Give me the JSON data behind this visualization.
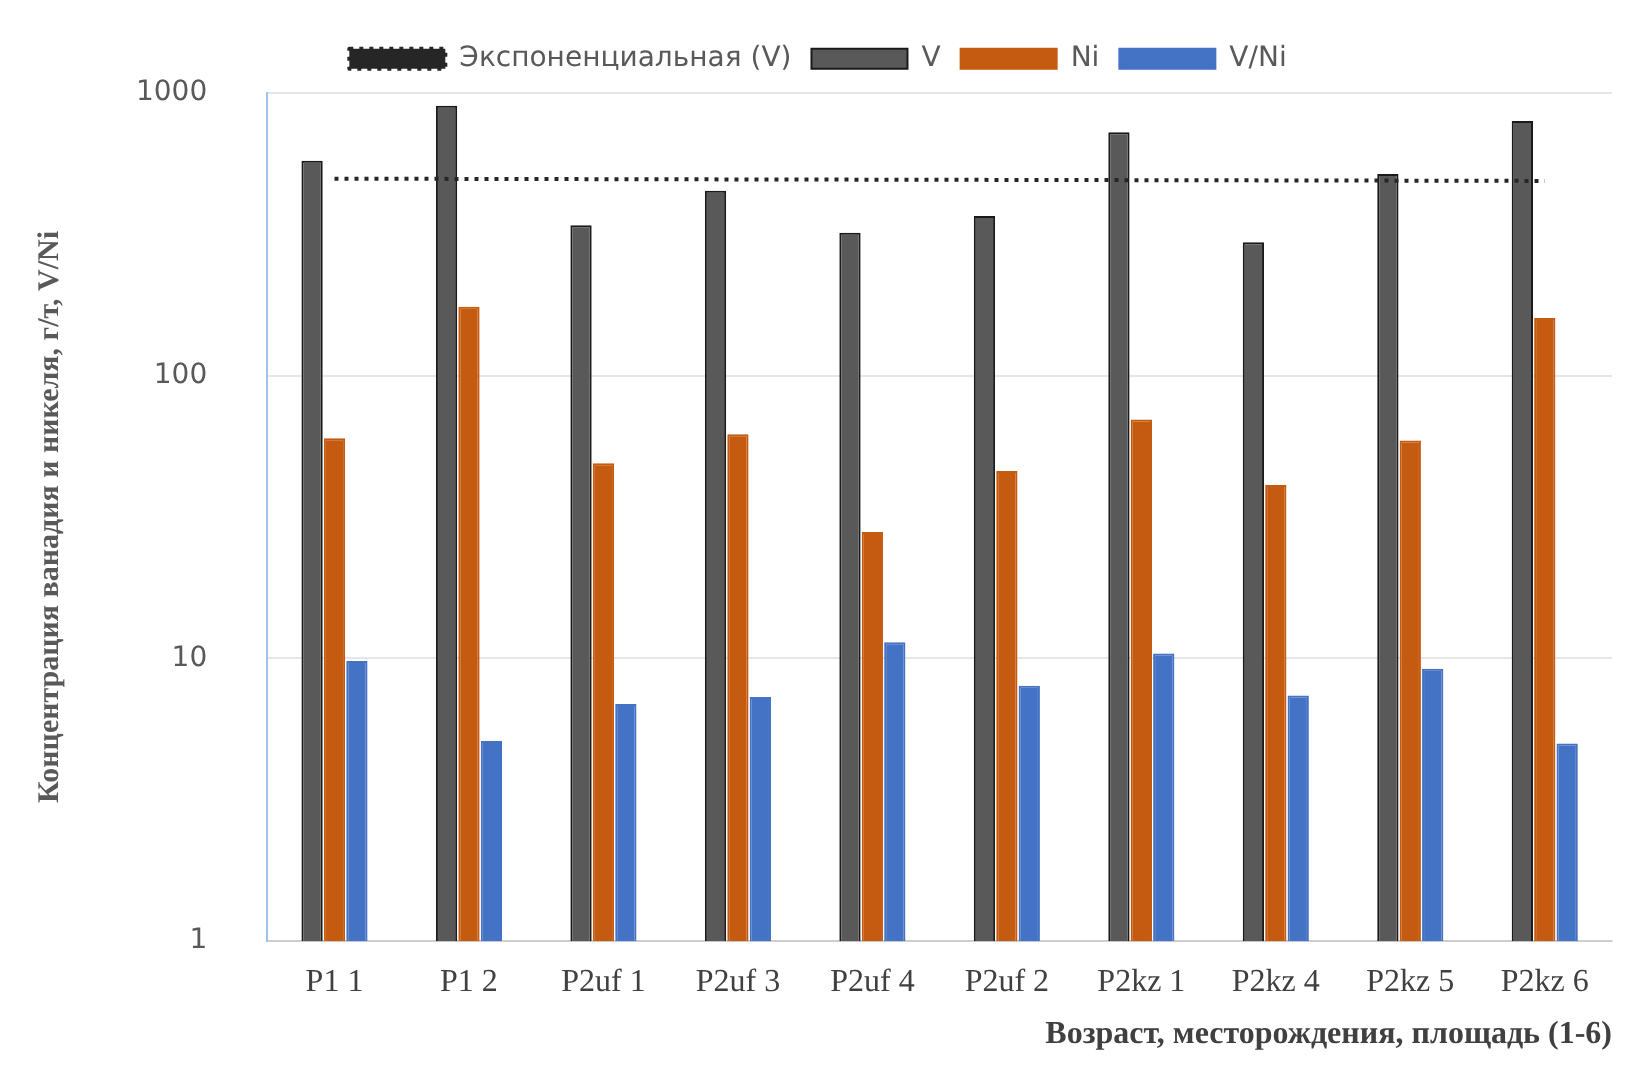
{
  "chart_data": {
    "type": "bar",
    "xlabel": "Возраст, месторождения, площадь (1-6)",
    "ylabel": "Концентрация ванадия и никеля, г/т, V/Ni",
    "categories": [
      "P1 1",
      "P1 2",
      "P2uf 1",
      "P2uf 3",
      "P2uf 4",
      "P2uf 2",
      "P2kz 1",
      "P2kz 4",
      "P2kz 5",
      "P2kz 6"
    ],
    "series": [
      {
        "name": "V",
        "color": "#595959",
        "values": [
          575,
          900,
          340,
          450,
          320,
          367,
          725,
          296,
          516,
          795
        ]
      },
      {
        "name": "Ni",
        "color": "#c55a11",
        "values": [
          60,
          175,
          49,
          62,
          28,
          46,
          70,
          41,
          59,
          160
        ]
      },
      {
        "name": "V/Ni",
        "color": "#4472c4",
        "values": [
          9.8,
          5.1,
          6.9,
          7.3,
          11.4,
          8,
          10.4,
          7.4,
          9.2,
          5
        ]
      },
      {
        "name": "Экспоненциальная (V)",
        "type": "line",
        "line_style": "dotted",
        "color": "#262626",
        "values": [
          497,
          496,
          495,
          494,
          493,
          492,
          491,
          490,
          489,
          488
        ]
      }
    ],
    "log": true,
    "ylim": [
      1,
      1000
    ],
    "yticks": [
      1,
      10,
      100,
      1000
    ],
    "grid": "y",
    "legend": "top"
  }
}
